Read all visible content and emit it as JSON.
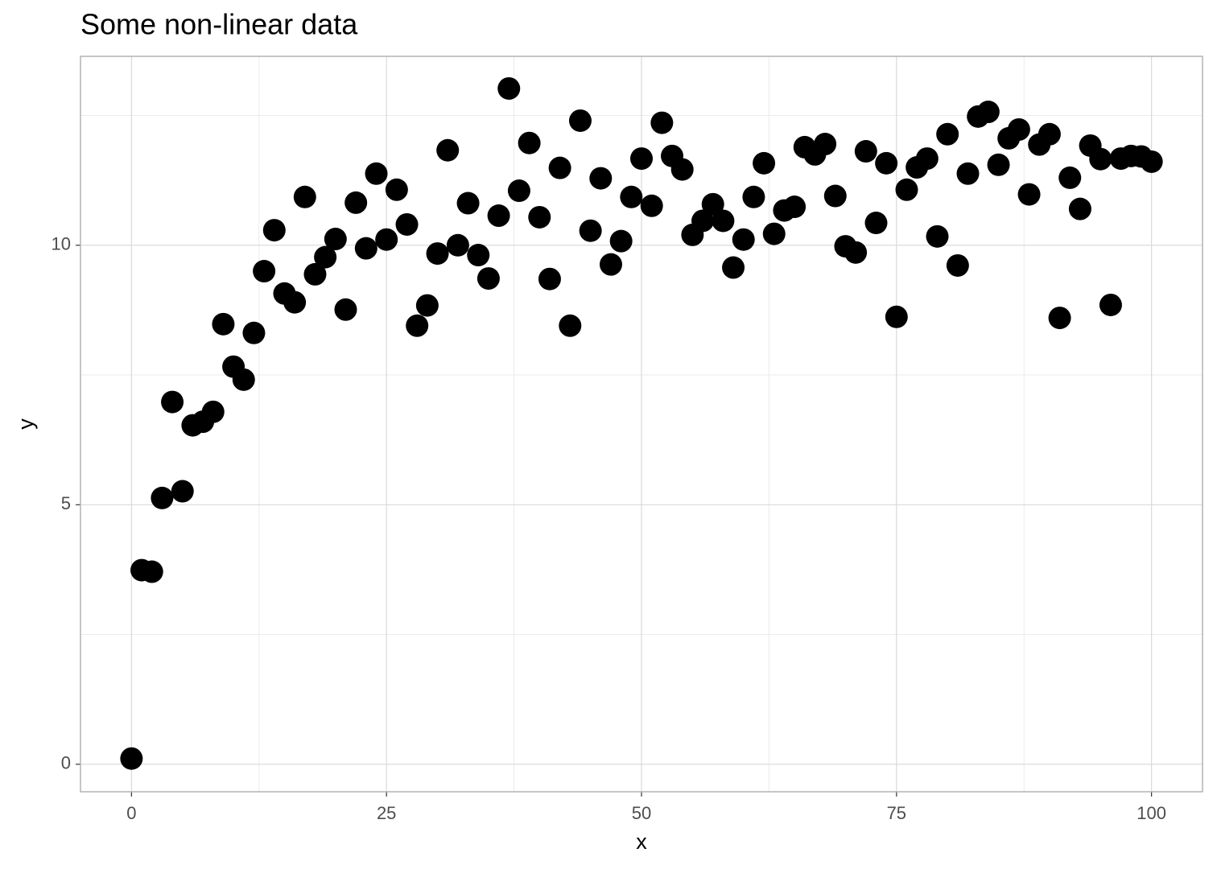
{
  "chart_data": {
    "type": "scatter",
    "title": "Some non-linear data",
    "x_label": "x",
    "y_label": "y",
    "x": [
      0,
      1,
      2,
      3,
      4,
      5,
      6,
      7,
      8,
      9,
      10,
      11,
      12,
      13,
      14,
      15,
      16,
      17,
      18,
      19,
      20,
      21,
      22,
      23,
      24,
      25,
      26,
      27,
      28,
      29,
      30,
      31,
      32,
      33,
      34,
      35,
      36,
      37,
      38,
      39,
      40,
      41,
      42,
      43,
      44,
      45,
      46,
      47,
      48,
      49,
      50,
      51,
      52,
      53,
      54,
      55,
      56,
      57,
      58,
      59,
      60,
      61,
      62,
      63,
      64,
      65,
      66,
      67,
      68,
      69,
      70,
      71,
      72,
      73,
      74,
      75,
      76,
      77,
      78,
      79,
      80,
      81,
      82,
      83,
      84,
      85,
      86,
      87,
      88,
      89,
      90,
      91,
      92,
      93,
      94,
      95,
      96,
      97,
      98,
      99,
      100
    ],
    "values": [
      0.11,
      3.74,
      3.71,
      5.13,
      6.98,
      5.26,
      6.53,
      6.6,
      6.79,
      8.48,
      7.66,
      7.41,
      8.31,
      9.5,
      10.29,
      9.07,
      8.9,
      10.93,
      9.44,
      9.77,
      10.12,
      8.76,
      10.82,
      9.94,
      11.38,
      10.11,
      11.07,
      10.4,
      8.45,
      8.84,
      9.84,
      11.83,
      10.0,
      10.81,
      9.81,
      9.36,
      10.57,
      13.02,
      11.05,
      11.97,
      10.54,
      9.35,
      11.49,
      8.45,
      12.4,
      10.28,
      11.29,
      9.63,
      10.08,
      10.93,
      11.67,
      10.76,
      12.36,
      11.72,
      11.46,
      10.2,
      10.47,
      10.79,
      10.47,
      9.57,
      10.11,
      10.93,
      11.58,
      10.22,
      10.67,
      10.74,
      11.89,
      11.75,
      11.95,
      10.95,
      9.98,
      9.86,
      11.81,
      10.43,
      11.58,
      8.62,
      11.07,
      11.5,
      11.67,
      10.17,
      12.14,
      9.61,
      11.38,
      12.48,
      12.57,
      11.55,
      12.06,
      12.23,
      10.98,
      11.94,
      12.14,
      8.6,
      11.3,
      10.7,
      11.92,
      11.66,
      8.85,
      11.67,
      11.72,
      11.71,
      11.61
    ],
    "color": "#000000",
    "xlim": [
      -5,
      105
    ],
    "ylim": [
      -0.53,
      13.64
    ],
    "xticks": [
      0,
      25,
      50,
      75,
      100
    ],
    "yticks": [
      0,
      5,
      10
    ],
    "grid": true,
    "minor_grid": true
  }
}
